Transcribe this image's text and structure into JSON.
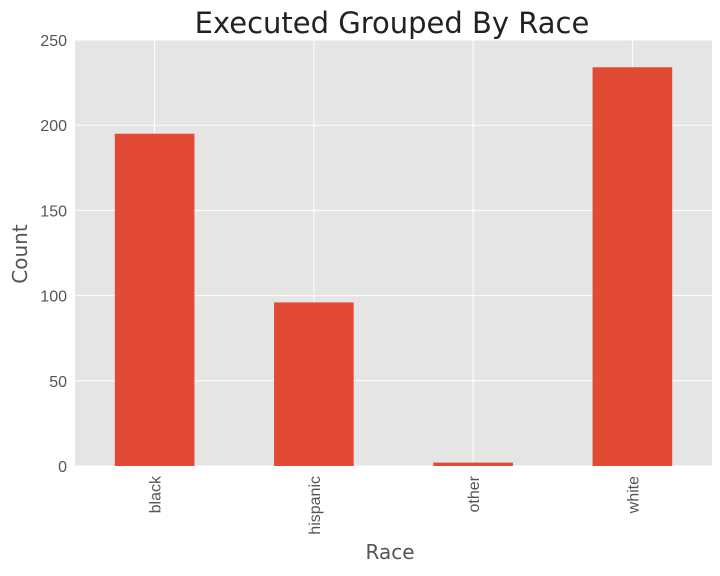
{
  "chart_data": {
    "type": "bar",
    "title": "Executed Grouped By Race",
    "xlabel": "Race",
    "ylabel": "Count",
    "categories": [
      "black",
      "hispanic",
      "other",
      "white"
    ],
    "values": [
      195,
      96,
      2,
      234
    ],
    "ylim": [
      0,
      250
    ],
    "yticks": [
      "0",
      "50",
      "100",
      "150",
      "200",
      "250"
    ],
    "grid": true,
    "legend": "none",
    "colors": {
      "bar": "#E24A33",
      "plot_background": "#E5E5E5",
      "grid": "#FFFFFF"
    }
  }
}
